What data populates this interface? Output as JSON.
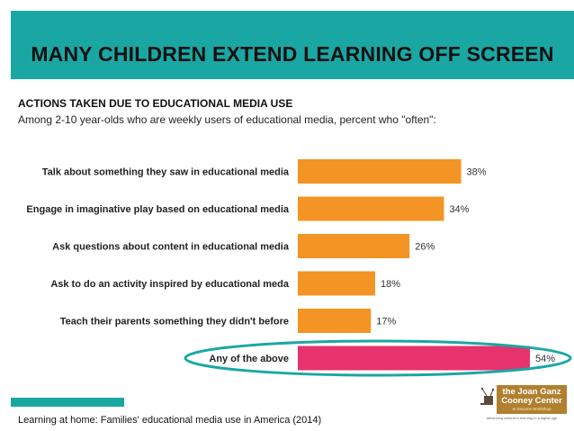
{
  "header": {
    "title": "MANY CHILDREN EXTEND LEARNING OFF SCREEN"
  },
  "subheading": {
    "title": "ACTIONS TAKEN DUE TO EDUCATIONAL MEDIA USE",
    "description": "Among 2-10 year-olds who are weekly users of educational media, percent who \"often\":"
  },
  "chart_data": {
    "type": "bar",
    "orientation": "horizontal",
    "categories": [
      "Talk about something they saw in educational media",
      "Engage in imaginative play based on educational media",
      "Ask questions about content in educational media",
      "Ask to do an activity inspired by educational meda",
      "Teach their parents something they didn't before",
      "Any of the above"
    ],
    "values": [
      38,
      34,
      26,
      18,
      17,
      54
    ],
    "value_labels": [
      "38%",
      "34%",
      "26%",
      "18%",
      "17%",
      "54%"
    ],
    "bar_colors": [
      "#f39424",
      "#f39424",
      "#f39424",
      "#f39424",
      "#f39424",
      "#e6336d"
    ],
    "highlight_index": 5,
    "highlight_color": "#1aa7a4",
    "xlim": [
      0,
      54
    ],
    "grid": false,
    "title": "ACTIONS TAKEN DUE TO EDUCATIONAL MEDIA USE",
    "xlabel": "",
    "ylabel": ""
  },
  "footer": {
    "source": "Learning at home: Families' educational media use in America (2014)"
  },
  "logo": {
    "line1": "the Joan Ganz",
    "line2": "Cooney Center",
    "small": "at Sesame Workshop",
    "tagline": "advancing children's learning in a digital age"
  },
  "colors": {
    "accent": "#1aa7a4",
    "bar": "#f39424",
    "highlight_bar": "#e6336d"
  }
}
